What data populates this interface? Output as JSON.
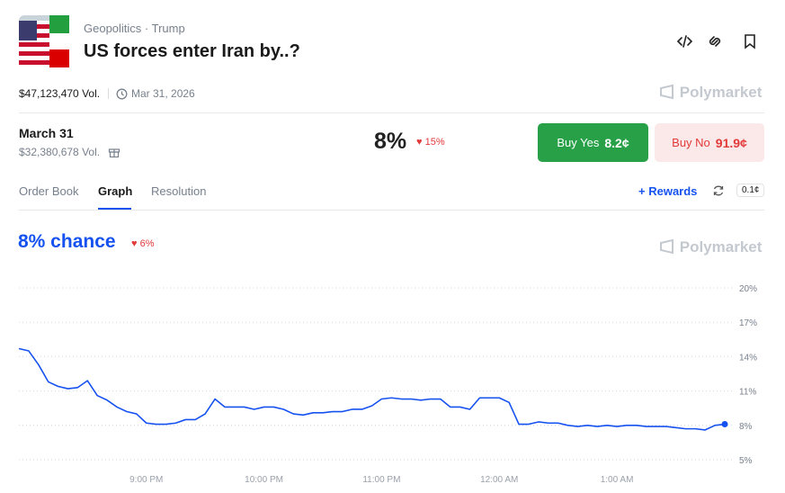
{
  "header": {
    "category": "Geopolitics",
    "tag": "Trump",
    "title": "US forces enter Iran by..?",
    "volume": "$47,123,470 Vol.",
    "end_date": "Mar 31, 2026",
    "brand": "Polymarket"
  },
  "outcome": {
    "name": "March 31",
    "volume": "$32,380,678 Vol.",
    "chance": "8%",
    "change": "15%",
    "buy_yes": "Buy Yes",
    "yes_price": "8.2¢",
    "buy_no": "Buy No",
    "no_price": "91.9¢"
  },
  "tabs": {
    "items": [
      "Order Book",
      "Graph",
      "Resolution"
    ],
    "rewards": "Rewards",
    "spread": "0.1¢"
  },
  "chart_data": {
    "type": "line",
    "title": "8% chance",
    "change": "6%",
    "brand": "Polymarket",
    "categories": [
      null,
      null,
      null,
      null,
      null,
      null,
      null,
      null,
      null,
      null,
      null,
      null,
      null,
      "9:00 PM",
      null,
      null,
      null,
      null,
      null,
      null,
      null,
      null,
      null,
      null,
      null,
      "10:00 PM",
      null,
      null,
      null,
      null,
      null,
      null,
      null,
      null,
      null,
      null,
      null,
      "11:00 PM",
      null,
      null,
      null,
      null,
      null,
      null,
      null,
      null,
      null,
      null,
      null,
      "12:00 AM",
      null,
      null,
      null,
      null,
      null,
      null,
      null,
      null,
      null,
      null,
      null,
      "1:00 AM",
      null,
      null,
      null,
      null,
      null,
      null,
      null,
      null,
      null,
      null,
      null
    ],
    "series": [
      {
        "name": "March 31",
        "color": "#1652f0",
        "values": [
          14.7,
          14.5,
          13.3,
          11.8,
          11.4,
          11.2,
          11.3,
          11.9,
          10.6,
          10.2,
          9.6,
          9.2,
          9.0,
          8.2,
          8.1,
          8.1,
          8.2,
          8.5,
          8.5,
          9.0,
          10.3,
          9.6,
          9.6,
          9.6,
          9.4,
          9.6,
          9.6,
          9.4,
          9.0,
          8.9,
          9.1,
          9.1,
          9.2,
          9.2,
          9.4,
          9.4,
          9.7,
          10.3,
          10.4,
          10.3,
          10.3,
          10.2,
          10.3,
          10.3,
          9.6,
          9.6,
          9.4,
          10.4,
          10.4,
          10.4,
          10.0,
          8.1,
          8.1,
          8.3,
          8.2,
          8.2,
          8.0,
          7.9,
          8.0,
          7.9,
          8.0,
          7.9,
          8.0,
          8.0,
          7.9,
          7.9,
          7.9,
          7.8,
          7.7,
          7.7,
          7.6,
          8.0,
          8.1
        ]
      }
    ],
    "ylim": [
      5,
      20
    ],
    "yticks": [
      {
        "value": 5,
        "label": "5%"
      },
      {
        "value": 8,
        "label": "8%"
      },
      {
        "value": 11,
        "label": "11%"
      },
      {
        "value": 14,
        "label": "14%"
      },
      {
        "value": 17,
        "label": "17%"
      },
      {
        "value": 20,
        "label": "20%"
      }
    ],
    "grid": true
  }
}
